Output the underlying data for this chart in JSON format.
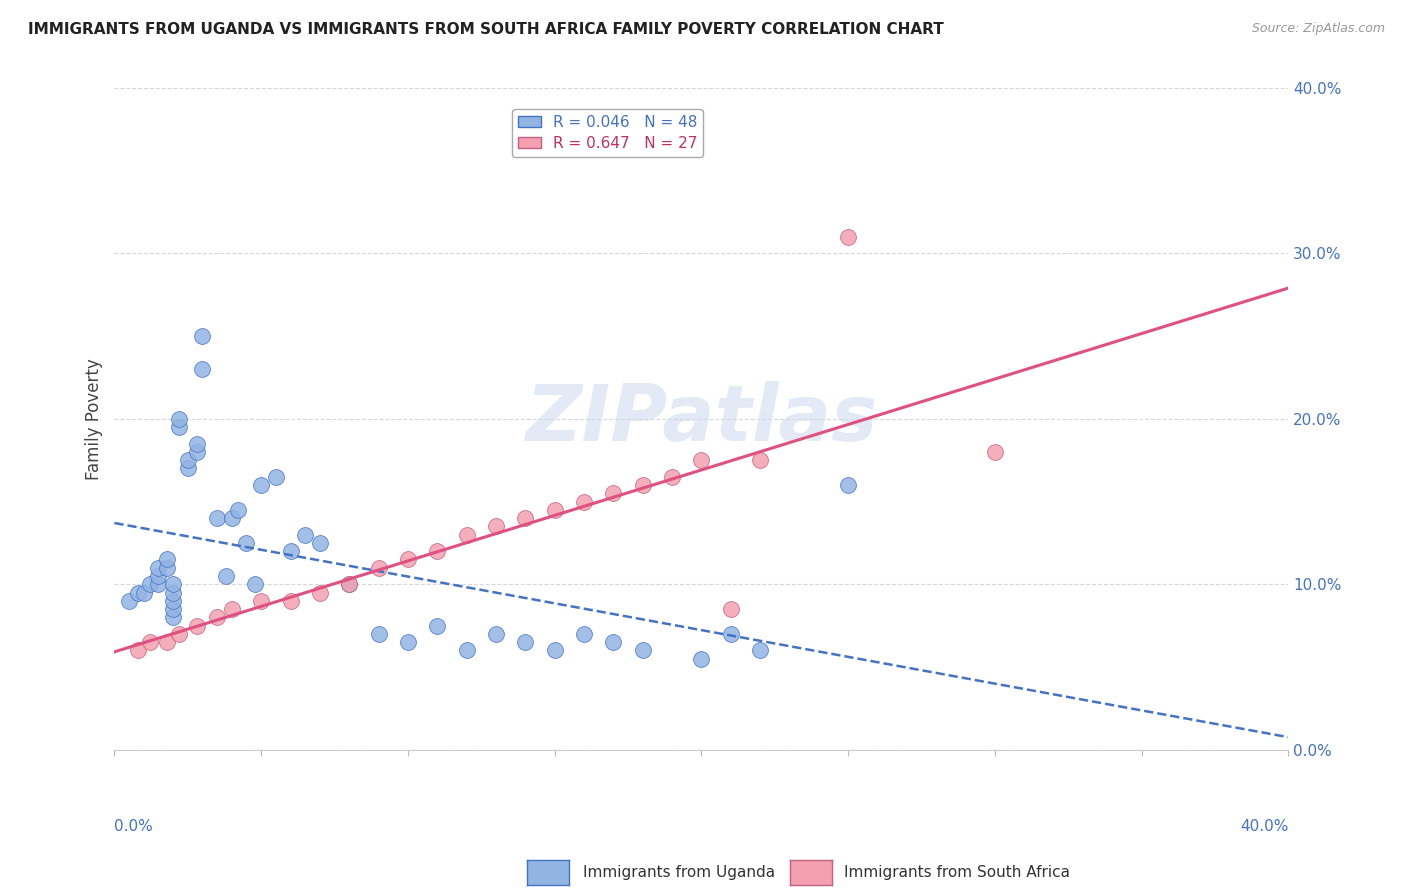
{
  "title": "IMMIGRANTS FROM UGANDA VS IMMIGRANTS FROM SOUTH AFRICA FAMILY POVERTY CORRELATION CHART",
  "source": "Source: ZipAtlas.com",
  "ylabel": "Family Poverty",
  "color_uganda": "#92b4e3",
  "color_south_africa": "#f4a0b0",
  "line_color_uganda": "#4472c4",
  "line_color_south_africa": "#e05080",
  "edge_color_south_africa": "#c06080",
  "legend_text_uganda": "R = 0.046   N = 48",
  "legend_text_sa": "R = 0.647   N = 27",
  "legend_text_color_uganda": "#4472c4",
  "legend_text_color_sa": "#c03060",
  "watermark": "ZIPatlas",
  "grid_color": "#d8d8d8",
  "background_color": "#ffffff",
  "xlim": [
    0.0,
    0.4
  ],
  "ylim": [
    0.0,
    0.4
  ],
  "uganda_x": [
    0.005,
    0.008,
    0.01,
    0.012,
    0.015,
    0.015,
    0.015,
    0.018,
    0.018,
    0.02,
    0.02,
    0.02,
    0.02,
    0.02,
    0.022,
    0.022,
    0.025,
    0.025,
    0.028,
    0.028,
    0.03,
    0.03,
    0.035,
    0.04,
    0.042,
    0.045,
    0.05,
    0.055,
    0.06,
    0.065,
    0.07,
    0.08,
    0.09,
    0.1,
    0.11,
    0.12,
    0.13,
    0.14,
    0.15,
    0.16,
    0.17,
    0.18,
    0.2,
    0.21,
    0.22,
    0.038,
    0.048,
    0.25
  ],
  "uganda_y": [
    0.09,
    0.095,
    0.095,
    0.1,
    0.1,
    0.105,
    0.11,
    0.11,
    0.115,
    0.08,
    0.085,
    0.09,
    0.095,
    0.1,
    0.195,
    0.2,
    0.17,
    0.175,
    0.18,
    0.185,
    0.25,
    0.23,
    0.14,
    0.14,
    0.145,
    0.125,
    0.16,
    0.165,
    0.12,
    0.13,
    0.125,
    0.1,
    0.07,
    0.065,
    0.075,
    0.06,
    0.07,
    0.065,
    0.06,
    0.07,
    0.065,
    0.06,
    0.055,
    0.07,
    0.06,
    0.105,
    0.1,
    0.16
  ],
  "sa_x": [
    0.008,
    0.012,
    0.018,
    0.022,
    0.028,
    0.035,
    0.04,
    0.05,
    0.06,
    0.07,
    0.08,
    0.09,
    0.1,
    0.11,
    0.12,
    0.13,
    0.14,
    0.15,
    0.16,
    0.17,
    0.18,
    0.19,
    0.2,
    0.21,
    0.25,
    0.3,
    0.22
  ],
  "sa_y": [
    0.06,
    0.065,
    0.065,
    0.07,
    0.075,
    0.08,
    0.085,
    0.09,
    0.09,
    0.095,
    0.1,
    0.11,
    0.115,
    0.12,
    0.13,
    0.135,
    0.14,
    0.145,
    0.15,
    0.155,
    0.16,
    0.165,
    0.175,
    0.085,
    0.31,
    0.18,
    0.175
  ]
}
